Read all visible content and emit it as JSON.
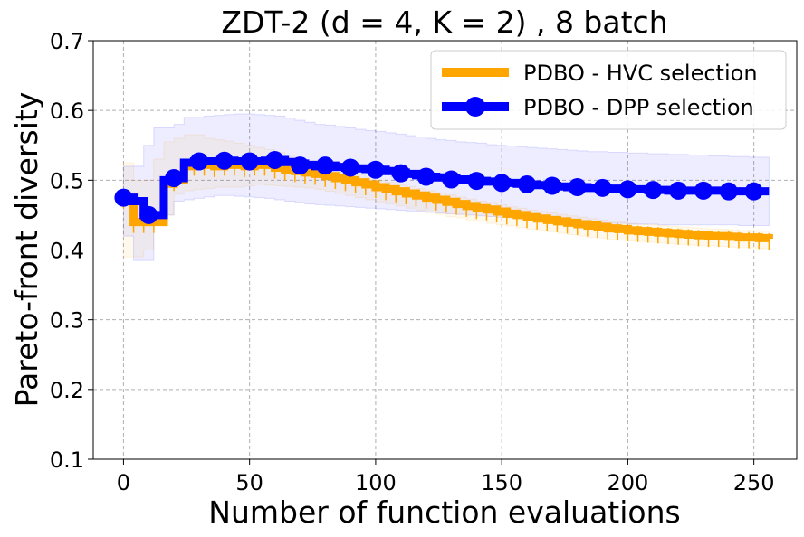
{
  "chart_data": {
    "type": "line",
    "title": "ZDT-2 (d = 4, K = 2) , 8 batch",
    "xlabel": "Number of function evaluations",
    "ylabel": "Pareto-front diversity",
    "xlim": [
      -12,
      267
    ],
    "ylim": [
      0.1,
      0.7
    ],
    "xticks": [
      0,
      50,
      100,
      150,
      200,
      250
    ],
    "xtick_labels": [
      "0",
      "50",
      "100",
      "150",
      "200",
      "250"
    ],
    "yticks": [
      0.1,
      0.2,
      0.3,
      0.4,
      0.5,
      0.6,
      0.7
    ],
    "ytick_labels": [
      "0.1",
      "0.2",
      "0.3",
      "0.4",
      "0.5",
      "0.6",
      "0.7"
    ],
    "grid": true,
    "legend_position": "top-right",
    "series": [
      {
        "name": "PDBO - HVC selection",
        "color": "#FFA500",
        "marker": "tick",
        "x": [
          0,
          4,
          8,
          12,
          16,
          20,
          24,
          28,
          32,
          36,
          40,
          44,
          48,
          52,
          56,
          60,
          64,
          68,
          72,
          76,
          80,
          84,
          88,
          92,
          96,
          100,
          104,
          108,
          112,
          116,
          120,
          124,
          128,
          132,
          136,
          140,
          144,
          148,
          152,
          156,
          160,
          164,
          168,
          172,
          176,
          180,
          184,
          188,
          192,
          196,
          200,
          204,
          208,
          212,
          216,
          220,
          224,
          228,
          232,
          236,
          240,
          244,
          248,
          252,
          256
        ],
        "values": [
          0.475,
          0.44,
          0.44,
          0.44,
          0.495,
          0.5,
          0.52,
          0.522,
          0.522,
          0.52,
          0.522,
          0.522,
          0.52,
          0.522,
          0.522,
          0.518,
          0.515,
          0.513,
          0.511,
          0.509,
          0.506,
          0.503,
          0.5,
          0.497,
          0.494,
          0.49,
          0.487,
          0.484,
          0.481,
          0.478,
          0.475,
          0.472,
          0.469,
          0.466,
          0.463,
          0.46,
          0.458,
          0.455,
          0.452,
          0.45,
          0.447,
          0.445,
          0.443,
          0.441,
          0.439,
          0.437,
          0.435,
          0.433,
          0.431,
          0.43,
          0.428,
          0.427,
          0.426,
          0.425,
          0.424,
          0.423,
          0.422,
          0.421,
          0.42,
          0.42,
          0.419,
          0.418,
          0.418,
          0.417,
          0.416
        ],
        "band_upper": [
          0.525,
          0.5,
          0.5,
          0.53,
          0.555,
          0.56,
          0.565,
          0.565,
          0.56,
          0.558,
          0.556,
          0.553,
          0.55,
          0.547,
          0.544,
          0.54,
          0.536,
          0.532,
          0.528,
          0.524,
          0.52,
          0.516,
          0.512,
          0.508,
          0.504,
          0.5,
          0.497,
          0.494,
          0.491,
          0.488,
          0.485,
          0.482,
          0.479,
          0.476,
          0.473,
          0.47,
          0.468,
          0.465,
          0.462,
          0.46,
          0.457,
          0.455,
          0.453,
          0.451,
          0.449,
          0.447,
          0.445,
          0.443,
          0.441,
          0.44,
          0.438,
          0.437,
          0.436,
          0.435,
          0.434,
          0.433,
          0.432,
          0.431,
          0.43,
          0.43,
          0.429,
          0.428,
          0.428,
          0.427,
          0.426
        ],
        "band_lower": [
          0.425,
          0.39,
          0.39,
          0.4,
          0.44,
          0.45,
          0.48,
          0.485,
          0.487,
          0.488,
          0.49,
          0.49,
          0.49,
          0.492,
          0.494,
          0.493,
          0.492,
          0.491,
          0.49,
          0.489,
          0.487,
          0.484,
          0.481,
          0.478,
          0.475,
          0.472,
          0.469,
          0.466,
          0.463,
          0.46,
          0.457,
          0.454,
          0.451,
          0.448,
          0.446,
          0.443,
          0.441,
          0.438,
          0.436,
          0.434,
          0.432,
          0.43,
          0.428,
          0.426,
          0.424,
          0.422,
          0.42,
          0.418,
          0.417,
          0.415,
          0.414,
          0.413,
          0.412,
          0.411,
          0.41,
          0.409,
          0.408,
          0.407,
          0.406,
          0.406,
          0.405,
          0.404,
          0.404,
          0.403,
          0.402
        ]
      },
      {
        "name": "PDBO - DPP selection",
        "color": "#0000FF",
        "marker": "circle",
        "x": [
          0,
          4,
          8,
          12,
          16,
          20,
          24,
          28,
          32,
          36,
          40,
          44,
          48,
          52,
          56,
          60,
          64,
          68,
          72,
          76,
          80,
          84,
          88,
          92,
          96,
          100,
          104,
          108,
          112,
          116,
          120,
          124,
          128,
          132,
          136,
          140,
          144,
          148,
          152,
          156,
          160,
          164,
          168,
          172,
          176,
          180,
          184,
          188,
          192,
          196,
          200,
          204,
          208,
          212,
          216,
          220,
          224,
          228,
          232,
          236,
          240,
          244,
          248,
          252,
          256
        ],
        "values": [
          0.475,
          0.47,
          0.45,
          0.45,
          0.5,
          0.503,
          0.525,
          0.527,
          0.527,
          0.527,
          0.528,
          0.527,
          0.527,
          0.527,
          0.528,
          0.529,
          0.526,
          0.524,
          0.522,
          0.52,
          0.521,
          0.519,
          0.518,
          0.517,
          0.516,
          0.515,
          0.513,
          0.511,
          0.509,
          0.507,
          0.505,
          0.504,
          0.503,
          0.501,
          0.5,
          0.499,
          0.498,
          0.497,
          0.496,
          0.495,
          0.494,
          0.493,
          0.492,
          0.491,
          0.49,
          0.49,
          0.489,
          0.489,
          0.488,
          0.488,
          0.487,
          0.487,
          0.486,
          0.486,
          0.485,
          0.485,
          0.485,
          0.485,
          0.485,
          0.485,
          0.484,
          0.484,
          0.484,
          0.484,
          0.484
        ],
        "band_upper": [
          0.52,
          0.52,
          0.55,
          0.575,
          0.575,
          0.58,
          0.59,
          0.59,
          0.592,
          0.593,
          0.594,
          0.595,
          0.595,
          0.594,
          0.593,
          0.592,
          0.589,
          0.586,
          0.583,
          0.58,
          0.579,
          0.577,
          0.575,
          0.573,
          0.571,
          0.57,
          0.568,
          0.566,
          0.564,
          0.562,
          0.56,
          0.558,
          0.557,
          0.555,
          0.554,
          0.553,
          0.551,
          0.55,
          0.549,
          0.548,
          0.547,
          0.546,
          0.545,
          0.544,
          0.543,
          0.542,
          0.541,
          0.541,
          0.54,
          0.54,
          0.539,
          0.539,
          0.538,
          0.538,
          0.537,
          0.537,
          0.536,
          0.536,
          0.535,
          0.535,
          0.534,
          0.534,
          0.533,
          0.533,
          0.533
        ],
        "band_lower": [
          0.43,
          0.42,
          0.385,
          0.385,
          0.44,
          0.45,
          0.47,
          0.472,
          0.474,
          0.476,
          0.478,
          0.478,
          0.477,
          0.476,
          0.475,
          0.474,
          0.472,
          0.47,
          0.468,
          0.466,
          0.465,
          0.464,
          0.463,
          0.462,
          0.461,
          0.46,
          0.459,
          0.458,
          0.457,
          0.456,
          0.455,
          0.454,
          0.453,
          0.452,
          0.451,
          0.45,
          0.449,
          0.448,
          0.447,
          0.446,
          0.445,
          0.444,
          0.443,
          0.442,
          0.441,
          0.44,
          0.44,
          0.439,
          0.439,
          0.438,
          0.438,
          0.437,
          0.437,
          0.437,
          0.436,
          0.436,
          0.436,
          0.436,
          0.436,
          0.436,
          0.436,
          0.436,
          0.435,
          0.435,
          0.435
        ],
        "marker_x": [
          0,
          10,
          20,
          30,
          40,
          50,
          60,
          70,
          80,
          90,
          100,
          110,
          120,
          130,
          140,
          150,
          160,
          170,
          180,
          190,
          200,
          210,
          220,
          230,
          240,
          250
        ],
        "marker_values": [
          0.475,
          0.45,
          0.503,
          0.527,
          0.528,
          0.527,
          0.529,
          0.521,
          0.521,
          0.518,
          0.515,
          0.51,
          0.505,
          0.501,
          0.499,
          0.496,
          0.494,
          0.492,
          0.49,
          0.489,
          0.487,
          0.486,
          0.485,
          0.485,
          0.484,
          0.484
        ]
      }
    ]
  }
}
